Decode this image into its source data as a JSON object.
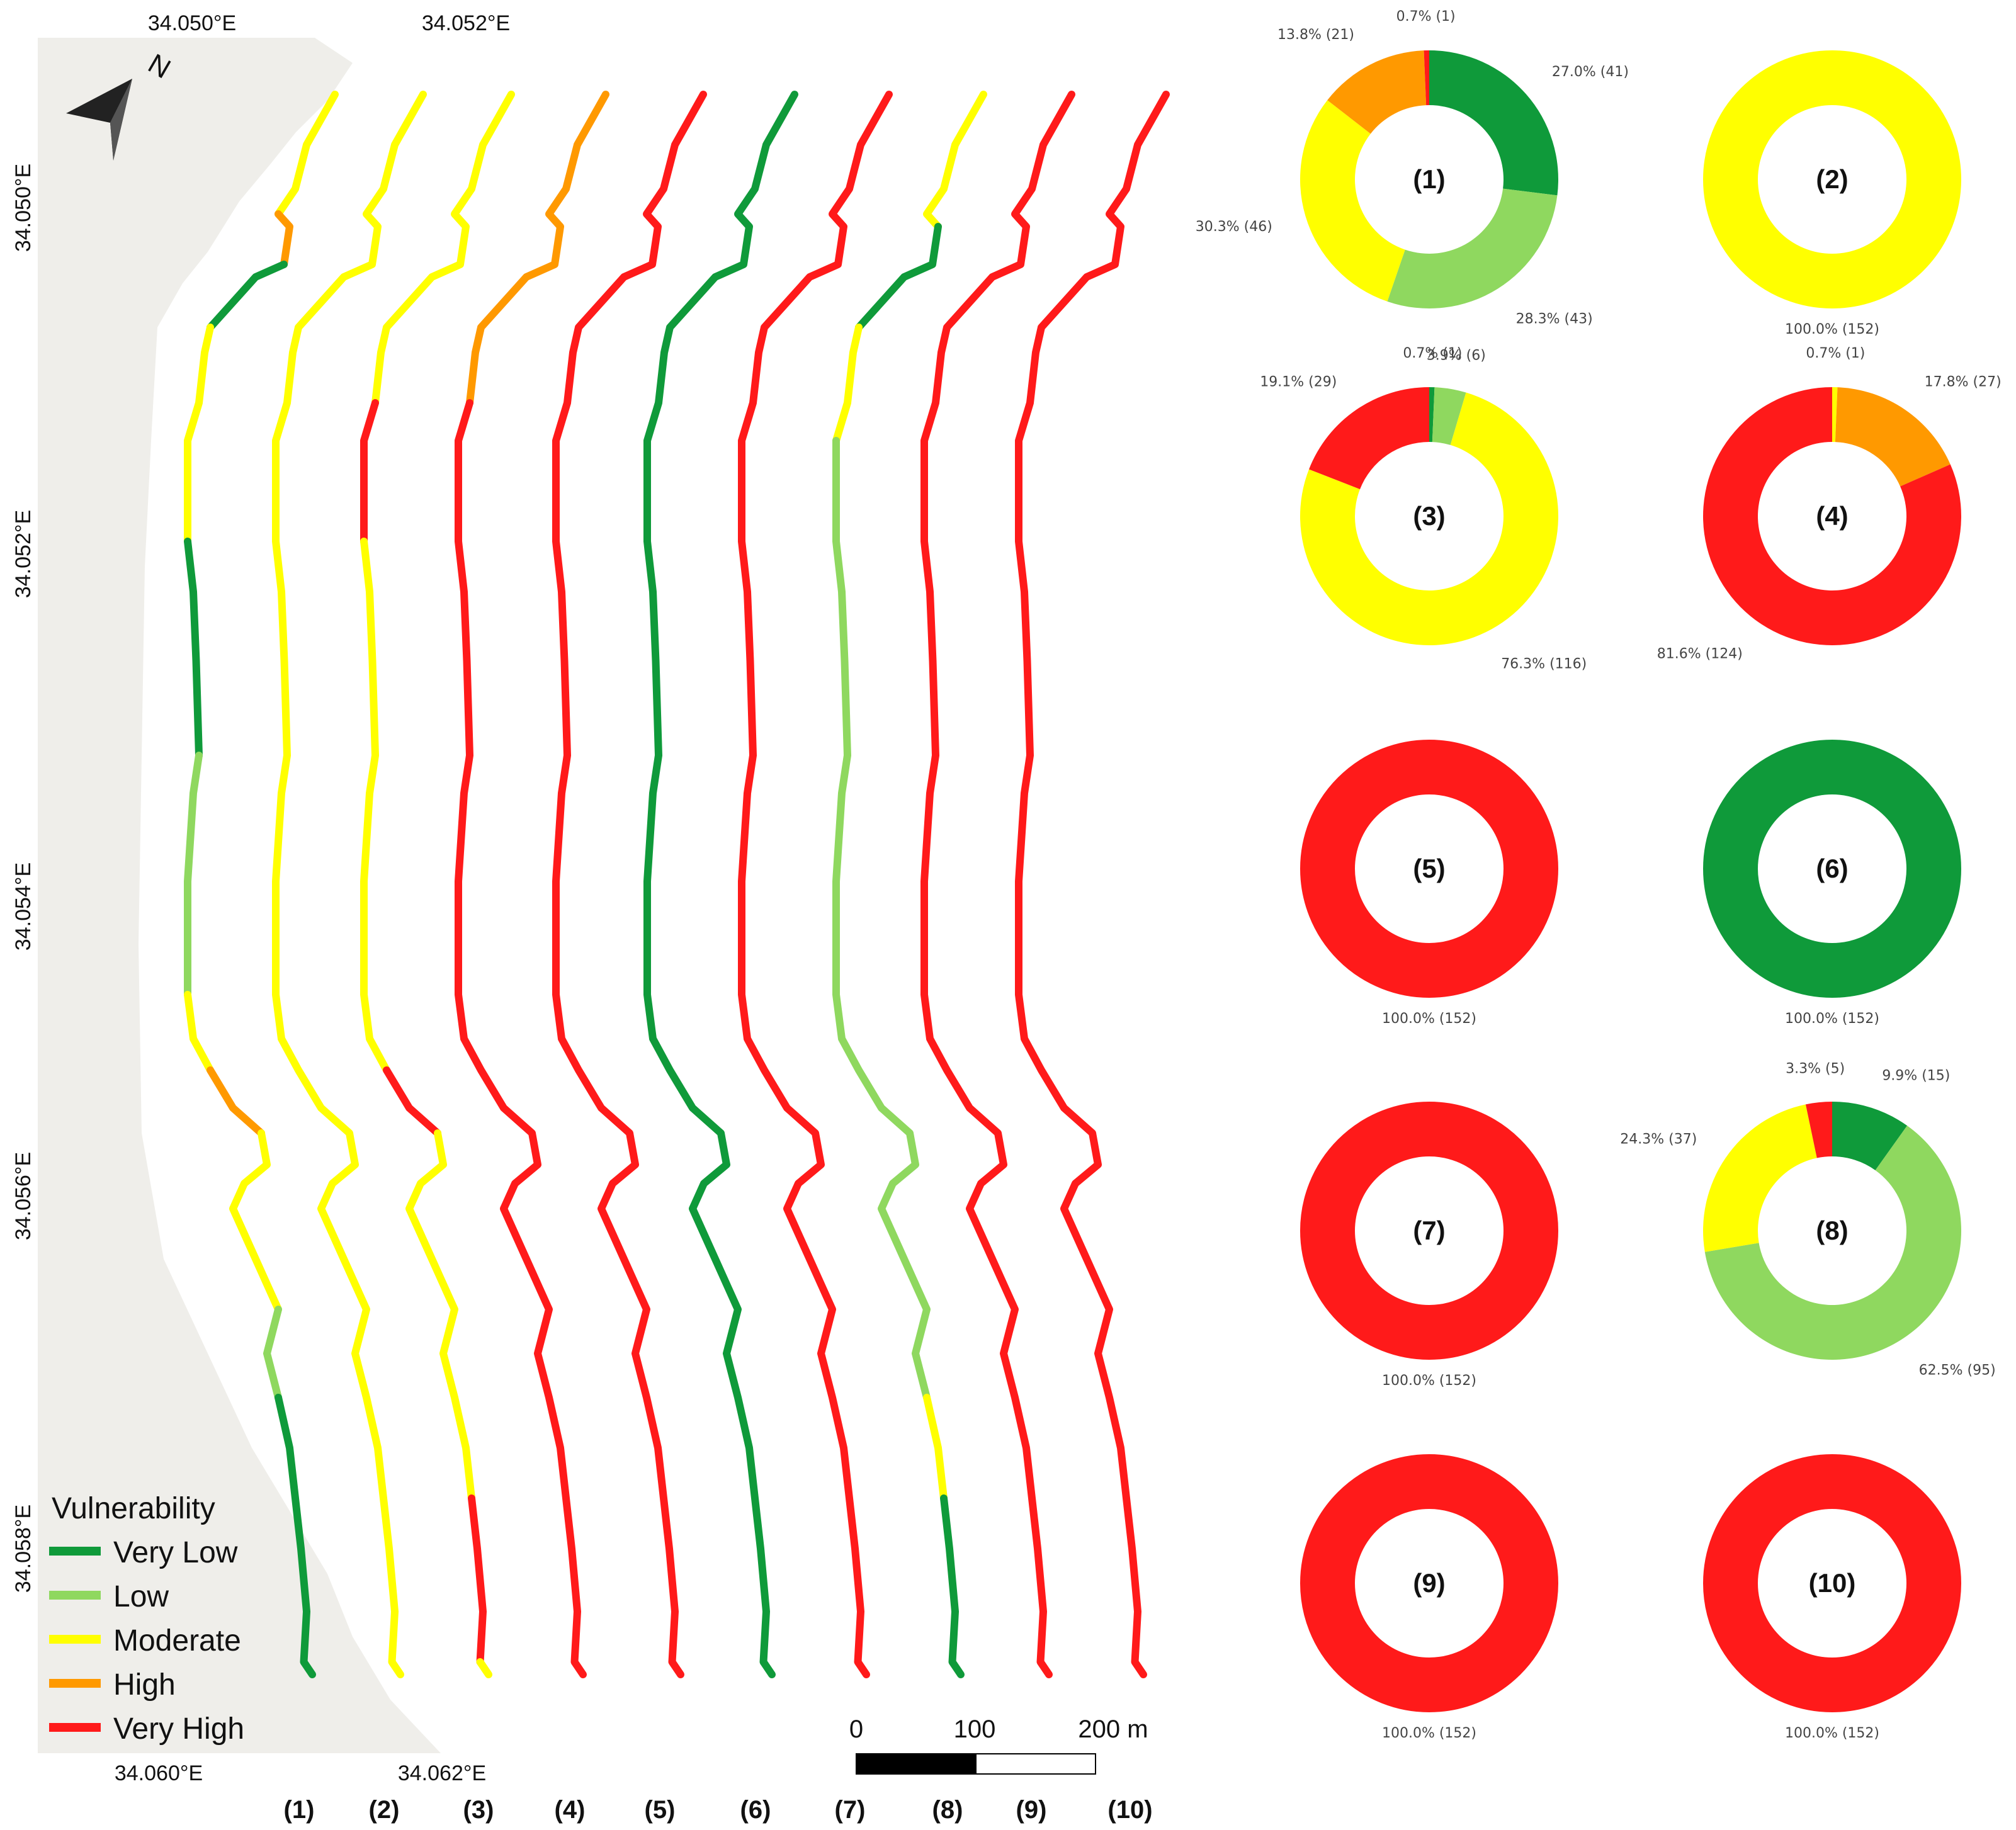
{
  "map": {
    "top_ticks": [
      "34.050°E",
      "34.052°E"
    ],
    "bottom_ticks": [
      "34.060°E",
      "34.062°E"
    ],
    "left_ticks": [
      "34.050°E",
      "34.052°E",
      "34.054°E",
      "34.056°E",
      "34.058°E"
    ],
    "north_label": "N",
    "line_labels": [
      "(1)",
      "(2)",
      "(3)",
      "(4)",
      "(5)",
      "(6)",
      "(7)",
      "(8)",
      "(9)",
      "(10)"
    ],
    "legend": {
      "title": "Vulnerability",
      "items": [
        {
          "label": "Very Low",
          "color": "#0f9a3a"
        },
        {
          "label": "Low",
          "color": "#8fd85f"
        },
        {
          "label": "Moderate",
          "color": "#ffff00"
        },
        {
          "label": "High",
          "color": "#ff9900"
        },
        {
          "label": "Very High",
          "color": "#ff1a1a"
        }
      ]
    },
    "scale_bar": {
      "labels": [
        "0",
        "100",
        "200 m"
      ]
    },
    "colors": {
      "very_low": "#0f9a3a",
      "low": "#8fd85f",
      "moderate": "#ffff00",
      "high": "#ff9900",
      "very_high": "#ff1a1a",
      "land": "#efeeea"
    }
  },
  "chart_data": [
    {
      "type": "pie",
      "title": "(1)",
      "categories": [
        "Very Low",
        "Low",
        "Moderate",
        "High",
        "Very High"
      ],
      "values": [
        41,
        43,
        46,
        21,
        1
      ],
      "labels": [
        "27.0% (41)",
        "28.3% (43)",
        "30.3% (46)",
        "13.8% (21)",
        "0.7% (1)"
      ]
    },
    {
      "type": "pie",
      "title": "(2)",
      "categories": [
        "Moderate"
      ],
      "values": [
        152
      ],
      "labels": [
        "100.0% (152)"
      ]
    },
    {
      "type": "pie",
      "title": "(3)",
      "categories": [
        "Very Low",
        "Low",
        "Moderate",
        "Very High"
      ],
      "values": [
        1,
        6,
        116,
        29
      ],
      "labels": [
        "0.7% (1)",
        "3.9% (6)",
        "76.3% (116)",
        "19.1% (29)"
      ]
    },
    {
      "type": "pie",
      "title": "(4)",
      "categories": [
        "Moderate",
        "High",
        "Very High"
      ],
      "values": [
        1,
        27,
        124
      ],
      "labels": [
        "0.7% (1)",
        "17.8% (27)",
        "81.6% (124)"
      ]
    },
    {
      "type": "pie",
      "title": "(5)",
      "categories": [
        "Very High"
      ],
      "values": [
        152
      ],
      "labels": [
        "100.0% (152)"
      ]
    },
    {
      "type": "pie",
      "title": "(6)",
      "categories": [
        "Very Low"
      ],
      "values": [
        152
      ],
      "labels": [
        "100.0% (152)"
      ]
    },
    {
      "type": "pie",
      "title": "(7)",
      "categories": [
        "Very High"
      ],
      "values": [
        152
      ],
      "labels": [
        "100.0% (152)"
      ]
    },
    {
      "type": "pie",
      "title": "(8)",
      "categories": [
        "Very Low",
        "Low",
        "Moderate",
        "Very High"
      ],
      "values": [
        15,
        95,
        37,
        5
      ],
      "labels": [
        "9.9% (15)",
        "62.5% (95)",
        "24.3% (37)",
        "3.3% (5)"
      ]
    },
    {
      "type": "pie",
      "title": "(9)",
      "categories": [
        "Very High"
      ],
      "values": [
        152
      ],
      "labels": [
        "100.0% (152)"
      ]
    },
    {
      "type": "pie",
      "title": "(10)",
      "categories": [
        "Very High"
      ],
      "values": [
        152
      ],
      "labels": [
        "100.0% (152)"
      ]
    }
  ]
}
